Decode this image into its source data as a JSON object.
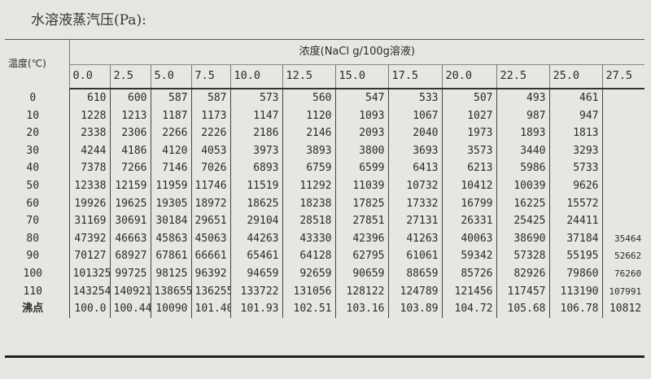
{
  "title": "水溶液蒸汽压(Pa):",
  "header": {
    "temperature_label": "温度(℃)",
    "concentration_label": "浓度(NaCl g/100g溶液)",
    "concentrations": [
      "0.0",
      "2.5",
      "5.0",
      "7.5",
      "10.0",
      "12.5",
      "15.0",
      "17.5",
      "20.0",
      "22.5",
      "25.0",
      "27.5"
    ]
  },
  "rows": [
    {
      "temp": "0",
      "values": [
        "610",
        "600",
        "587",
        "587",
        "573",
        "560",
        "547",
        "533",
        "507",
        "493",
        "461",
        ""
      ]
    },
    {
      "temp": "10",
      "values": [
        "1228",
        "1213",
        "1187",
        "1173",
        "1147",
        "1120",
        "1093",
        "1067",
        "1027",
        "987",
        "947",
        ""
      ]
    },
    {
      "temp": "20",
      "values": [
        "2338",
        "2306",
        "2266",
        "2226",
        "2186",
        "2146",
        "2093",
        "2040",
        "1973",
        "1893",
        "1813",
        ""
      ]
    },
    {
      "temp": "30",
      "values": [
        "4244",
        "4186",
        "4120",
        "4053",
        "3973",
        "3893",
        "3800",
        "3693",
        "3573",
        "3440",
        "3293",
        ""
      ]
    },
    {
      "temp": "40",
      "values": [
        "7378",
        "7266",
        "7146",
        "7026",
        "6893",
        "6759",
        "6599",
        "6413",
        "6213",
        "5986",
        "5733",
        ""
      ]
    },
    {
      "temp": "50",
      "values": [
        "12338",
        "12159",
        "11959",
        "11746",
        "11519",
        "11292",
        "11039",
        "10732",
        "10412",
        "10039",
        "9626",
        ""
      ]
    },
    {
      "temp": "60",
      "values": [
        "19926",
        "19625",
        "19305",
        "18972",
        "18625",
        "18238",
        "17825",
        "17332",
        "16799",
        "16225",
        "15572",
        ""
      ]
    },
    {
      "temp": "70",
      "values": [
        "31169",
        "30691",
        "30184",
        "29651",
        "29104",
        "28518",
        "27851",
        "27131",
        "26331",
        "25425",
        "24411",
        ""
      ]
    },
    {
      "temp": "80",
      "values": [
        "47392",
        "46663",
        "45863",
        "45063",
        "44263",
        "43330",
        "42396",
        "41263",
        "40063",
        "38690",
        "37184",
        "35464"
      ]
    },
    {
      "temp": "90",
      "values": [
        "70127",
        "68927",
        "67861",
        "66661",
        "65461",
        "64128",
        "62795",
        "61061",
        "59342",
        "57328",
        "55195",
        "52662"
      ]
    },
    {
      "temp": "100",
      "values": [
        "101325",
        "99725",
        "98125",
        "96392",
        "94659",
        "92659",
        "90659",
        "88659",
        "85726",
        "82926",
        "79860",
        "76260"
      ]
    },
    {
      "temp": "110",
      "values": [
        "143254",
        "140921",
        "138655",
        "136255",
        "133722",
        "131056",
        "128122",
        "124789",
        "121456",
        "117457",
        "113190",
        "107991"
      ]
    }
  ],
  "boiling_point": {
    "label": "沸点",
    "values": [
      "100.0",
      "100.44",
      "10090",
      "101.40",
      "101.93",
      "102.51",
      "103.16",
      "103.89",
      "104.72",
      "105.68",
      "106.78",
      "10812"
    ]
  }
}
